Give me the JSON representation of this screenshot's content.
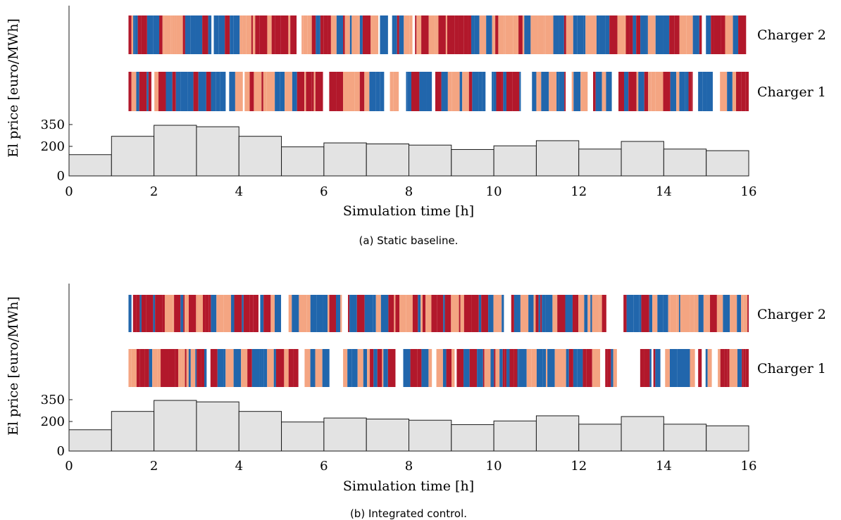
{
  "colors": {
    "bar_fill": "#e3e3e3",
    "bar_stroke": "#1a1a1a",
    "slot_dark_blue": "#2166ac",
    "slot_dark_red": "#b2182b",
    "slot_light_salmon": "#f4a582"
  },
  "chart_data": [
    {
      "type": "bar",
      "panel": "a",
      "caption": "(a) Static baseline.",
      "xlabel": "Simulation time [h]",
      "ylabel": "El price [euro/MWh]",
      "xlim": [
        0,
        16
      ],
      "ylim": [
        0,
        350
      ],
      "xticks": [
        "0",
        "2",
        "4",
        "6",
        "8",
        "10",
        "12",
        "14",
        "16"
      ],
      "yticks": [
        "0",
        "200",
        "350"
      ],
      "hourly_price": [
        145,
        270,
        345,
        335,
        270,
        198,
        225,
        218,
        210,
        180,
        205,
        240,
        183,
        235,
        183,
        172
      ],
      "chargers": [
        {
          "name": "Charger 2",
          "seed": 11,
          "start": 1.4,
          "end": 16,
          "gaps": []
        },
        {
          "name": "Charger 1",
          "seed": 23,
          "start": 1.4,
          "end": 16,
          "gaps": []
        }
      ]
    },
    {
      "type": "bar",
      "panel": "b",
      "caption": "(b) Integrated control.",
      "xlabel": "Simulation time [h]",
      "ylabel": "El price [euro/MWh]",
      "xlim": [
        0,
        16
      ],
      "ylim": [
        0,
        350
      ],
      "xticks": [
        "0",
        "2",
        "4",
        "6",
        "8",
        "10",
        "12",
        "14",
        "16"
      ],
      "yticks": [
        "0",
        "200",
        "350"
      ],
      "hourly_price": [
        145,
        270,
        345,
        335,
        270,
        198,
        225,
        218,
        210,
        180,
        205,
        240,
        183,
        235,
        183,
        172
      ],
      "chargers": [
        {
          "name": "Charger 2",
          "seed": 37,
          "start": 1.4,
          "end": 16,
          "gaps": [
            [
              12.8,
              13.0
            ]
          ]
        },
        {
          "name": "Charger 1",
          "seed": 51,
          "start": 1.4,
          "end": 16,
          "gaps": [
            [
              12.95,
              13.35
            ]
          ]
        }
      ]
    }
  ]
}
